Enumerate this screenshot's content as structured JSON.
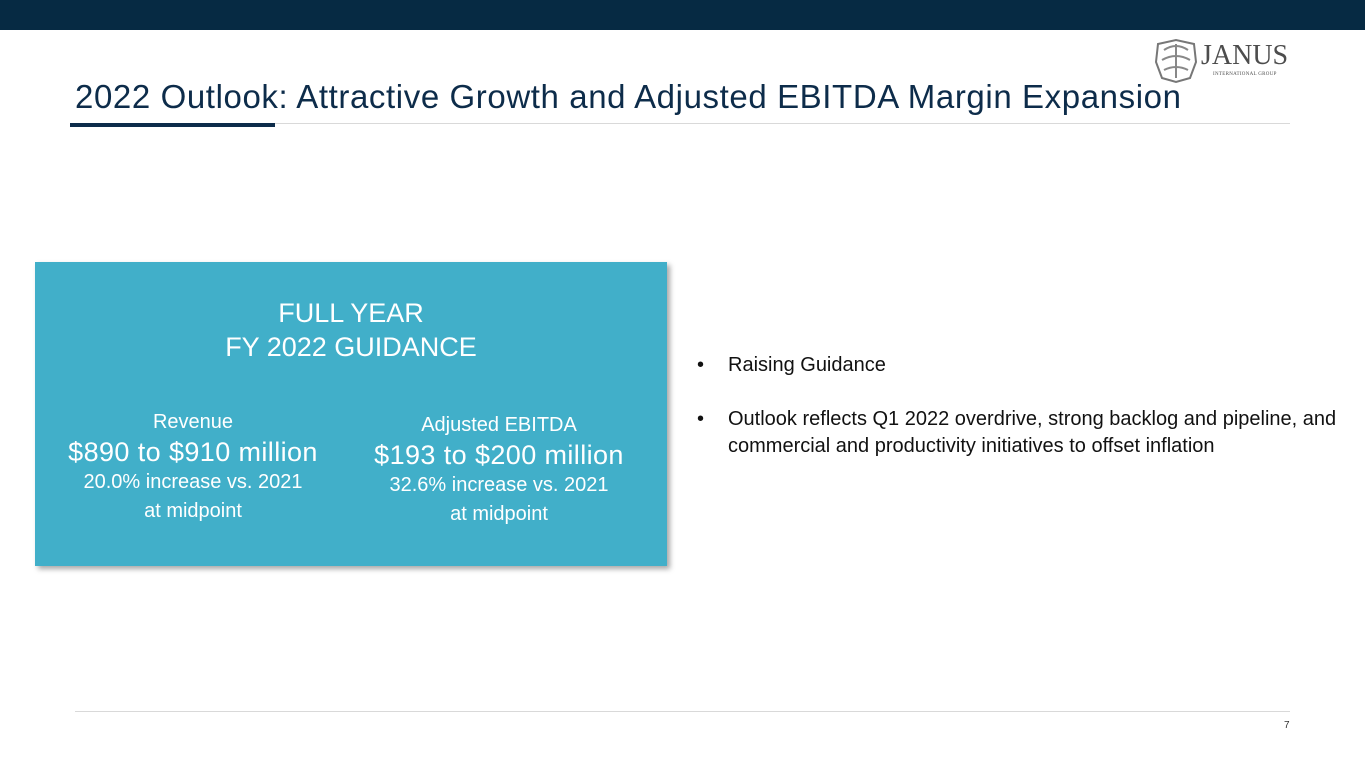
{
  "header": {
    "title": "2022 Outlook: Attractive Growth and Adjusted EBITDA Margin Expansion",
    "logo": {
      "name": "JANUS",
      "tagline": "INTERNATIONAL GROUP"
    }
  },
  "guidance_box": {
    "heading": [
      "FULL YEAR",
      "FY 2022 GUIDANCE"
    ],
    "metrics": [
      {
        "label": "Revenue",
        "range": "$890 to $910 million",
        "change": "20.0% increase vs. 2021",
        "note": "at midpoint"
      },
      {
        "label": "Adjusted EBITDA",
        "range": "$193 to $200 million",
        "change": "32.6% increase vs. 2021",
        "note": "at midpoint"
      }
    ]
  },
  "bullets": [
    "Raising Guidance",
    "Outlook reflects Q1 2022 overdrive, strong backlog and pipeline, and commercial and productivity initiatives to offset inflation"
  ],
  "footer": {
    "page_number": "7"
  }
}
